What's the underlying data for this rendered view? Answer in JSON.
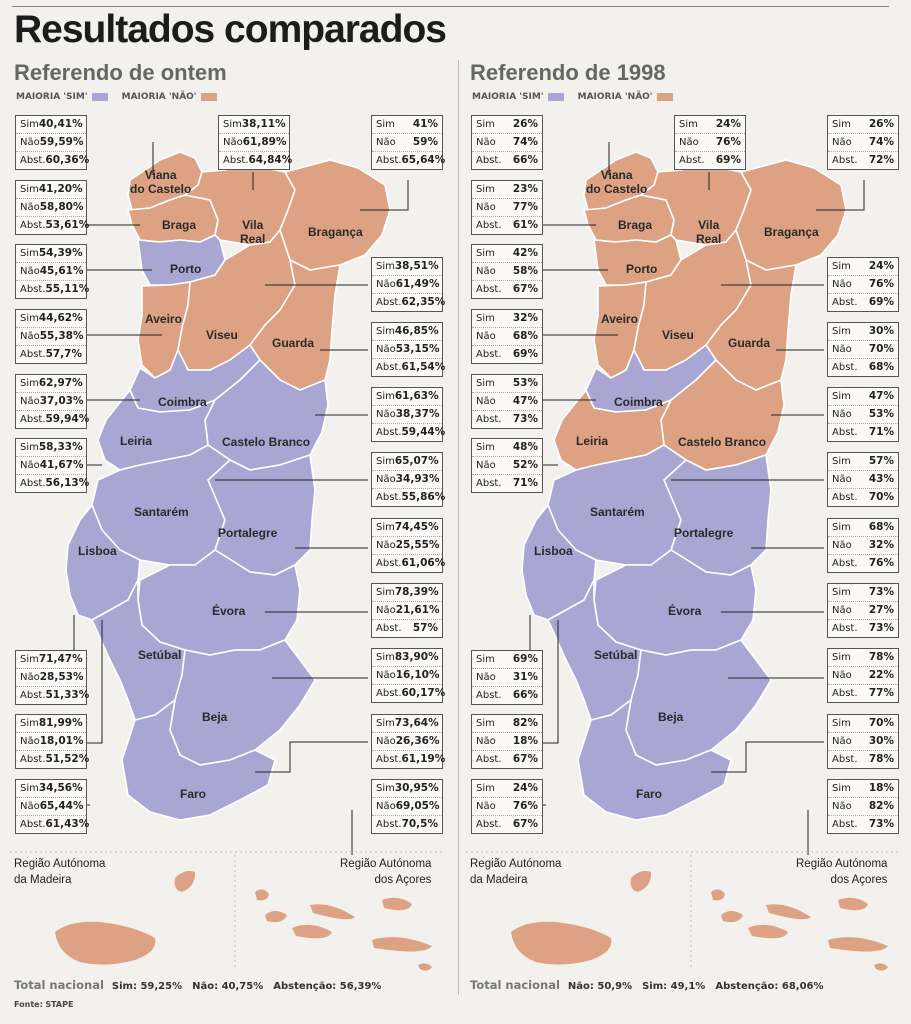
{
  "title": "Resultados comparados",
  "colors": {
    "sim": "#a9a6d4",
    "nao": "#dca283",
    "border_white": "#ffffff"
  },
  "panels": [
    {
      "id": "left",
      "title": "Referendo de ontem",
      "legend_sim": "MAIORIA 'SIM'",
      "legend_nao": "MAIORIA 'NÃO'",
      "islands": {
        "madeira": "Região Autónoma\nda Madeira",
        "acores": "Região Autónoma\ndos Açores"
      },
      "total": {
        "label": "Total nacional",
        "items": [
          "Sim: 59,25%",
          "Não: 40,75%",
          "Abstenção: 56,39%"
        ]
      },
      "districts": [
        {
          "name": "Viana do Castelo",
          "sim": "40,41%",
          "nao": "59,59%",
          "abst": "60,36%",
          "majority": "nao"
        },
        {
          "name": "Braga",
          "sim": "41,20%",
          "nao": "58,80%",
          "abst": "53,61%",
          "majority": "nao"
        },
        {
          "name": "Vila Real",
          "sim": "38,11%",
          "nao": "61,89%",
          "abst": "64,84%",
          "majority": "nao"
        },
        {
          "name": "Bragança",
          "sim": "41%",
          "nao": "59%",
          "abst": "65,64%",
          "majority": "nao"
        },
        {
          "name": "Porto",
          "sim": "54,39%",
          "nao": "45,61%",
          "abst": "55,11%",
          "majority": "sim"
        },
        {
          "name": "Aveiro",
          "sim": "44,62%",
          "nao": "55,38%",
          "abst": "57,7%",
          "majority": "nao"
        },
        {
          "name": "Viseu",
          "sim": "38,51%",
          "nao": "61,49%",
          "abst": "62,35%",
          "majority": "nao"
        },
        {
          "name": "Guarda",
          "sim": "46,85%",
          "nao": "53,15%",
          "abst": "61,54%",
          "majority": "nao"
        },
        {
          "name": "Coimbra",
          "sim": "62,97%",
          "nao": "37,03%",
          "abst": "59,94%",
          "majority": "sim"
        },
        {
          "name": "Castelo Branco",
          "sim": "61,63%",
          "nao": "38,37%",
          "abst": "59,44%",
          "majority": "sim"
        },
        {
          "name": "Leiria",
          "sim": "58,33%",
          "nao": "41,67%",
          "abst": "56,13%",
          "majority": "sim"
        },
        {
          "name": "Santarém",
          "sim": "65,07%",
          "nao": "34,93%",
          "abst": "55,86%",
          "majority": "sim"
        },
        {
          "name": "Portalegre",
          "sim": "74,45%",
          "nao": "25,55%",
          "abst": "61,06%",
          "majority": "sim"
        },
        {
          "name": "Évora",
          "sim": "78,39%",
          "nao": "21,61%",
          "abst": "57%",
          "majority": "sim"
        },
        {
          "name": "Lisboa",
          "sim": "71,47%",
          "nao": "28,53%",
          "abst": "51,33%",
          "majority": "sim"
        },
        {
          "name": "Setúbal",
          "sim": "81,99%",
          "nao": "18,01%",
          "abst": "51,52%",
          "majority": "sim"
        },
        {
          "name": "Beja",
          "sim": "83,90%",
          "nao": "16,10%",
          "abst": "60,17%",
          "majority": "sim"
        },
        {
          "name": "Faro",
          "sim": "73,64%",
          "nao": "26,36%",
          "abst": "61,19%",
          "majority": "sim"
        },
        {
          "name": "Madeira",
          "sim": "34,56%",
          "nao": "65,44%",
          "abst": "61,43%",
          "majority": "nao"
        },
        {
          "name": "Açores",
          "sim": "30,95%",
          "nao": "69,05%",
          "abst": "70,5%",
          "majority": "nao"
        }
      ]
    },
    {
      "id": "right",
      "title": "Referendo de 1998",
      "legend_sim": "MAIORIA 'SIM'",
      "legend_nao": "MAIORIA 'NÃO'",
      "islands": {
        "madeira": "Região Autónoma\nda Madeira",
        "acores": "Região Autónoma\ndos Açores"
      },
      "total": {
        "label": "Total nacional",
        "items": [
          "Não: 50,9%",
          "Sim: 49,1%",
          "Abstenção: 68,06%"
        ]
      },
      "districts": [
        {
          "name": "Viana do Castelo",
          "sim": "26%",
          "nao": "74%",
          "abst": "66%",
          "majority": "nao"
        },
        {
          "name": "Braga",
          "sim": "23%",
          "nao": "77%",
          "abst": "61%",
          "majority": "nao"
        },
        {
          "name": "Vila Real",
          "sim": "24%",
          "nao": "76%",
          "abst": "69%",
          "majority": "nao"
        },
        {
          "name": "Bragança",
          "sim": "26%",
          "nao": "74%",
          "abst": "72%",
          "majority": "nao"
        },
        {
          "name": "Porto",
          "sim": "42%",
          "nao": "58%",
          "abst": "67%",
          "majority": "nao"
        },
        {
          "name": "Aveiro",
          "sim": "32%",
          "nao": "68%",
          "abst": "69%",
          "majority": "nao"
        },
        {
          "name": "Viseu",
          "sim": "24%",
          "nao": "76%",
          "abst": "69%",
          "majority": "nao"
        },
        {
          "name": "Guarda",
          "sim": "30%",
          "nao": "70%",
          "abst": "68%",
          "majority": "nao"
        },
        {
          "name": "Coimbra",
          "sim": "53%",
          "nao": "47%",
          "abst": "73%",
          "majority": "sim"
        },
        {
          "name": "Castelo Branco",
          "sim": "47%",
          "nao": "53%",
          "abst": "71%",
          "majority": "nao"
        },
        {
          "name": "Leiria",
          "sim": "48%",
          "nao": "52%",
          "abst": "71%",
          "majority": "nao"
        },
        {
          "name": "Santarém",
          "sim": "57%",
          "nao": "43%",
          "abst": "70%",
          "majority": "sim"
        },
        {
          "name": "Portalegre",
          "sim": "68%",
          "nao": "32%",
          "abst": "76%",
          "majority": "sim"
        },
        {
          "name": "Évora",
          "sim": "73%",
          "nao": "27%",
          "abst": "73%",
          "majority": "sim"
        },
        {
          "name": "Lisboa",
          "sim": "69%",
          "nao": "31%",
          "abst": "66%",
          "majority": "sim"
        },
        {
          "name": "Setúbal",
          "sim": "82%",
          "nao": "18%",
          "abst": "67%",
          "majority": "sim"
        },
        {
          "name": "Beja",
          "sim": "78%",
          "nao": "22%",
          "abst": "77%",
          "majority": "sim"
        },
        {
          "name": "Faro",
          "sim": "70%",
          "nao": "30%",
          "abst": "78%",
          "majority": "sim"
        },
        {
          "name": "Madeira",
          "sim": "24%",
          "nao": "76%",
          "abst": "67%",
          "majority": "nao"
        },
        {
          "name": "Açores",
          "sim": "18%",
          "nao": "82%",
          "abst": "73%",
          "majority": "nao"
        }
      ]
    }
  ],
  "labels": {
    "sim": "Sim",
    "nao": "Não",
    "abst": "Abst.",
    "district_labels": [
      "Viana\ndo Castelo",
      "Braga",
      "Vila\nReal",
      "Bragança",
      "Porto",
      "Aveiro",
      "Viseu",
      "Guarda",
      "Coimbra",
      "Castelo Branco",
      "Leiria",
      "Santarém",
      "Lisboa",
      "Portalegre",
      "Évora",
      "Setúbal",
      "Beja",
      "Faro"
    ]
  },
  "fonte": {
    "label": "Fonte:",
    "value": "STAPE"
  }
}
